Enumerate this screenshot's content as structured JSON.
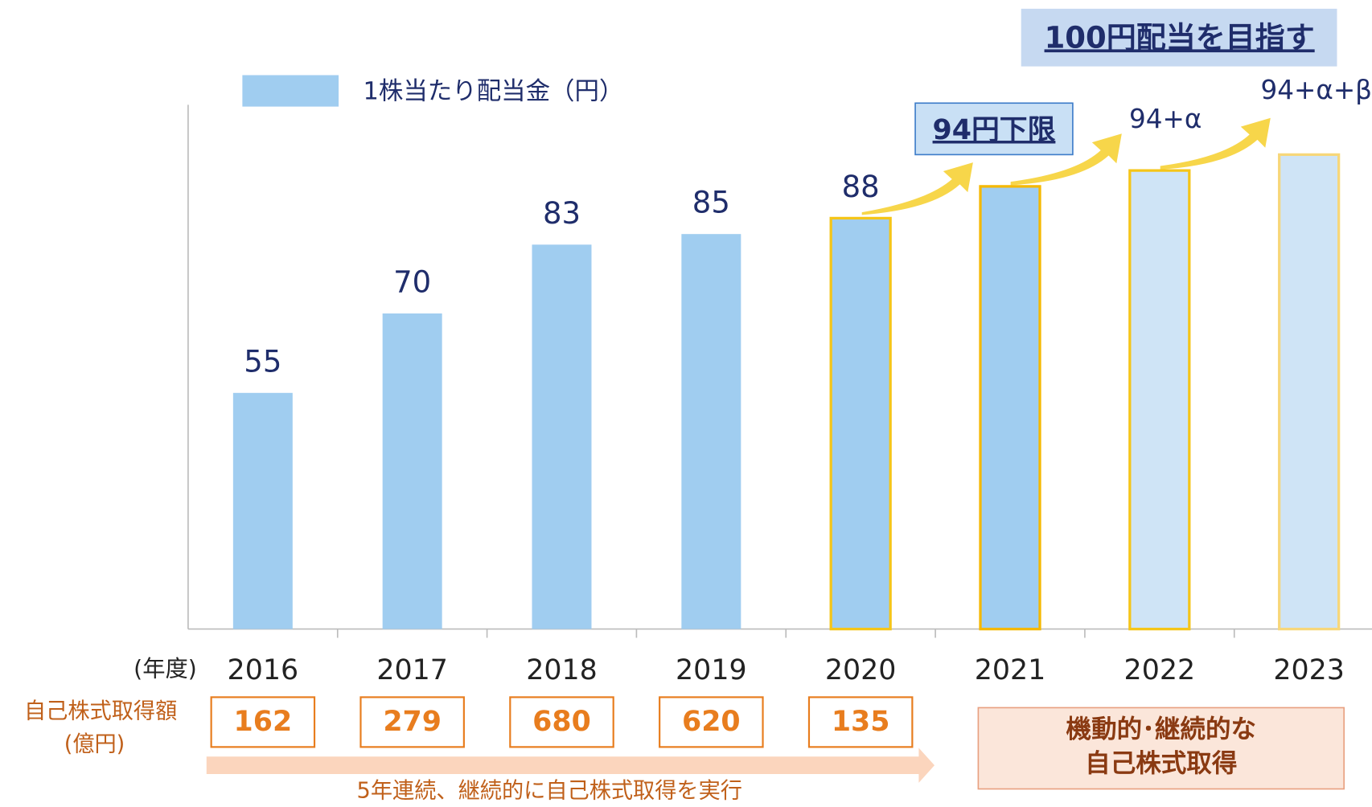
{
  "chart_data": {
    "type": "bar",
    "legend": "1株当たり配当金（円）",
    "x_label": "(年度)",
    "categories": [
      "2016",
      "2017",
      "2018",
      "2019",
      "2020",
      "2021",
      "2022",
      "2023"
    ],
    "values": [
      55,
      70,
      83,
      85,
      88,
      94,
      97,
      100
    ],
    "labeled_count": 5,
    "colors": [
      "#a0cdf0",
      "#a0cdf0",
      "#a0cdf0",
      "#a0cdf0",
      "#a0cdf0",
      "#a0cdf0",
      "#cfe4f6",
      "#cfe4f6"
    ],
    "edge_colors": [
      null,
      null,
      null,
      null,
      "#f5c518",
      "#f5b800",
      "#f5c518",
      "#f7d77a"
    ],
    "ylim": [
      10.4,
      109.4
    ],
    "annotations": {
      "target": "100円配当を目指す",
      "floor": "94円下限",
      "plus_a": "94+α",
      "plus_ab": "94+α+β"
    },
    "buyback": {
      "label": "自己株式取得額",
      "unit": "(億円)",
      "values": [
        162,
        279,
        680,
        620,
        135
      ],
      "note": "5年連続、継続的に自己株式取得を実行",
      "future": [
        "機動的･継続的な",
        "自己株式取得"
      ]
    }
  }
}
